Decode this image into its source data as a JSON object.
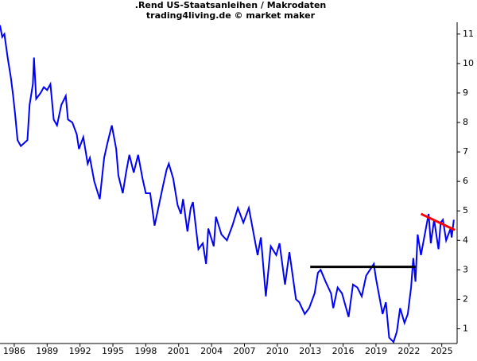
{
  "chart_data": {
    "type": "line",
    "title": ".Rend US-Staatsanleihen / Makrodaten",
    "subtitle": "trading4living.de © market maker",
    "x": [
      1984.7,
      1984.9,
      1985.1,
      1985.4,
      1985.7,
      1985.9,
      1986.1,
      1986.3,
      1986.6,
      1986.9,
      1987.2,
      1987.4,
      1987.7,
      1987.8,
      1988.0,
      1988.4,
      1988.7,
      1989.0,
      1989.3,
      1989.6,
      1989.9,
      1990.3,
      1990.7,
      1990.9,
      1991.3,
      1991.7,
      1991.9,
      1992.3,
      1992.7,
      1992.9,
      1993.3,
      1993.8,
      1994.2,
      1994.5,
      1994.9,
      1995.3,
      1995.5,
      1995.9,
      1996.2,
      1996.5,
      1996.9,
      1997.3,
      1997.7,
      1998.0,
      1998.4,
      1998.8,
      1999.2,
      1999.6,
      1999.9,
      2000.1,
      2000.5,
      2000.9,
      2001.2,
      2001.4,
      2001.8,
      2002.1,
      2002.3,
      2002.8,
      2003.2,
      2003.5,
      2003.7,
      2004.2,
      2004.4,
      2004.9,
      2005.4,
      2005.9,
      2006.4,
      2006.9,
      2007.4,
      2007.9,
      2008.2,
      2008.5,
      2008.95,
      2009.4,
      2009.9,
      2010.2,
      2010.7,
      2011.1,
      2011.7,
      2012.0,
      2012.5,
      2012.9,
      2013.4,
      2013.7,
      2013.95,
      2014.4,
      2014.9,
      2015.1,
      2015.5,
      2015.9,
      2016.5,
      2016.9,
      2017.3,
      2017.7,
      2018.1,
      2018.8,
      2019.0,
      2019.6,
      2019.9,
      2020.2,
      2020.6,
      2020.9,
      2021.2,
      2021.6,
      2021.9,
      2022.2,
      2022.4,
      2022.6,
      2022.8,
      2023.1,
      2023.3,
      2023.8,
      2024.0,
      2024.3,
      2024.7,
      2024.9,
      2025.1,
      2025.4,
      2025.8,
      2025.9,
      2026.1
    ],
    "series": [
      {
        "color": "#0000ff",
        "values": [
          11.3,
          10.9,
          11.0,
          10.2,
          9.5,
          8.9,
          8.2,
          7.4,
          7.2,
          7.3,
          7.4,
          8.6,
          9.3,
          10.2,
          8.8,
          9.0,
          9.2,
          9.1,
          9.3,
          8.1,
          7.9,
          8.6,
          8.9,
          8.1,
          8.0,
          7.6,
          7.1,
          7.5,
          6.6,
          6.8,
          6.0,
          5.4,
          6.8,
          7.3,
          7.9,
          7.1,
          6.2,
          5.6,
          6.3,
          6.9,
          6.3,
          6.9,
          6.1,
          5.6,
          5.6,
          4.5,
          5.2,
          5.9,
          6.4,
          6.6,
          6.1,
          5.2,
          4.9,
          5.4,
          4.3,
          5.1,
          5.3,
          3.7,
          3.9,
          3.2,
          4.4,
          3.8,
          4.8,
          4.2,
          4.0,
          4.5,
          5.1,
          4.6,
          5.1,
          4.1,
          3.5,
          4.1,
          2.1,
          3.8,
          3.5,
          3.9,
          2.5,
          3.6,
          2.0,
          1.9,
          1.5,
          1.7,
          2.2,
          2.9,
          3.0,
          2.6,
          2.2,
          1.7,
          2.4,
          2.2,
          1.4,
          2.5,
          2.4,
          2.1,
          2.8,
          3.2,
          2.7,
          1.5,
          1.9,
          0.7,
          0.55,
          0.9,
          1.7,
          1.2,
          1.5,
          2.4,
          3.4,
          2.6,
          4.2,
          3.5,
          3.9,
          4.9,
          3.9,
          4.7,
          3.7,
          4.6,
          4.7,
          4.0,
          4.4,
          4.1,
          4.7
        ]
      }
    ],
    "trendlines": [
      {
        "color": "#000000",
        "x": [
          2013.0,
          2022.6
        ],
        "y": [
          3.1,
          3.1
        ]
      },
      {
        "color": "#ff0000",
        "x": [
          2023.1,
          2026.2
        ],
        "y": [
          4.9,
          4.35
        ]
      }
    ],
    "xlim": [
      1984.7,
      2026.4
    ],
    "ylim": [
      0.5,
      11.4
    ],
    "xticks": [
      1986,
      1989,
      1992,
      1995,
      1998,
      2001,
      2004,
      2007,
      2010,
      2013,
      2016,
      2019,
      2022,
      2025
    ],
    "yticks": [
      1,
      2,
      3,
      4,
      5,
      6,
      7,
      8,
      9,
      10,
      11
    ]
  }
}
